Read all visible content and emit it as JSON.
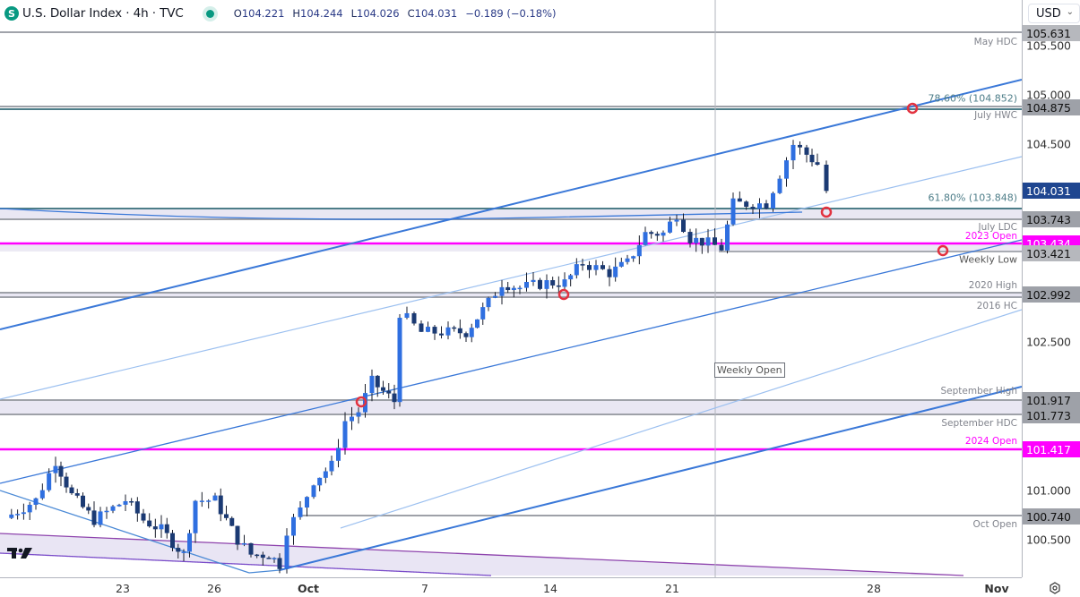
{
  "header": {
    "symbol_icon": "S",
    "title": "U.S. Dollar Index · 4h · TVC",
    "status": "market-open-dot",
    "ohlc": {
      "open_label": "O",
      "open": "104.221",
      "high_label": "H",
      "high": "104.244",
      "low_label": "L",
      "low": "104.026",
      "close_label": "C",
      "close": "104.031",
      "change": "−0.189 (−0.18%)"
    }
  },
  "currency_selector": {
    "value": "USD",
    "icon": "chevron-down-icon"
  },
  "price_axis": {
    "ticks": [
      "105.500",
      "105.000",
      "104.500",
      "102.500",
      "101.000",
      "100.500"
    ],
    "badges": [
      {
        "value": "105.631",
        "style": "lgrey"
      },
      {
        "value": "104.875",
        "style": "grey"
      },
      {
        "value": "104.031",
        "style": "navy"
      },
      {
        "value": "103.743",
        "style": "grey"
      },
      {
        "value": "103.434",
        "style": "mag"
      },
      {
        "value": "103.421",
        "style": "lgrey"
      },
      {
        "value": "102.992",
        "style": "grey"
      },
      {
        "value": "101.917",
        "style": "grey"
      },
      {
        "value": "101.773",
        "style": "grey"
      },
      {
        "value": "101.417",
        "style": "mag"
      },
      {
        "value": "100.740",
        "style": "grey"
      }
    ]
  },
  "time_axis": {
    "ticks": [
      {
        "label": "23",
        "bold": false
      },
      {
        "label": "26",
        "bold": false
      },
      {
        "label": "Oct",
        "bold": true
      },
      {
        "label": "7",
        "bold": false
      },
      {
        "label": "14",
        "bold": false
      },
      {
        "label": "21",
        "bold": false
      },
      {
        "label": "28",
        "bold": false
      },
      {
        "label": "Nov",
        "bold": true
      }
    ],
    "settings_icon": "gear-icon"
  },
  "level_labels": {
    "may_hdc": "May HDC",
    "fib786": "78.60% (104.852)",
    "july_hwc": "July HWC",
    "fib618": "61.80% (103.848)",
    "july_ldc": "July LDC",
    "open2023": "2023 Open",
    "weekly_low": "Weekly Low",
    "high2020": "2020 High",
    "hc2016": "2016 HC",
    "sept_high": "September High",
    "sept_hdc": "September HDC",
    "open2024": "2024 Open",
    "oct_open": "Oct Open",
    "weekly_open": "Weekly Open"
  },
  "colors": {
    "bull": "#2f6fe0",
    "bear": "#1b3a73",
    "magenta": "#ff00ff",
    "teal": "#4d7d88",
    "grey_level": "#9ea1a8",
    "zone_fill": "#e9e7f3",
    "channel": "#3a78d8",
    "channel_light": "#9cc0f0",
    "pitchfork_purple": "#8e44ad",
    "marker_red": "#e2323f"
  },
  "chart_data": {
    "type": "candlestick",
    "title": "U.S. Dollar Index · 4h · TVC",
    "xlabel": "",
    "ylabel": "USD",
    "ylim": [
      100.1,
      105.9
    ],
    "x_ticks": [
      "23",
      "26",
      "Oct",
      "7",
      "14",
      "21",
      "28",
      "Nov"
    ],
    "last": {
      "open": 104.221,
      "high": 104.244,
      "low": 104.026,
      "close": 104.031,
      "change": -0.189,
      "change_pct": -0.18
    },
    "horizontal_levels": [
      {
        "name": "May HDC",
        "price": 105.631
      },
      {
        "name": "78.60% Fib / July HWC",
        "price": 104.875,
        "fib": 104.852
      },
      {
        "name": "61.80% Fib",
        "price": 103.848
      },
      {
        "name": "July LDC",
        "price": 103.743
      },
      {
        "name": "2023 Open",
        "price": 103.434
      },
      {
        "name": "Weekly Low",
        "price": 103.421
      },
      {
        "name": "2020 High",
        "price": 103.0
      },
      {
        "name": "2016 HC",
        "price": 102.992
      },
      {
        "name": "September High",
        "price": 101.917
      },
      {
        "name": "September HDC",
        "price": 101.773
      },
      {
        "name": "2024 Open",
        "price": 101.417
      },
      {
        "name": "Oct Open",
        "price": 100.74
      }
    ],
    "approx_closes": [
      {
        "date": "Sep 20",
        "close": 100.8
      },
      {
        "date": "Sep 23",
        "close": 100.9
      },
      {
        "date": "Sep 25",
        "close": 100.4
      },
      {
        "date": "Sep 27",
        "close": 100.4
      },
      {
        "date": "Sep 30",
        "close": 100.7
      },
      {
        "date": "Oct 1",
        "close": 100.9
      },
      {
        "date": "Oct 2",
        "close": 101.2
      },
      {
        "date": "Oct 3",
        "close": 101.9
      },
      {
        "date": "Oct 4",
        "close": 102.5
      },
      {
        "date": "Oct 7",
        "close": 102.5
      },
      {
        "date": "Oct 9",
        "close": 102.9
      },
      {
        "date": "Oct 11",
        "close": 102.9
      },
      {
        "date": "Oct 14",
        "close": 103.1
      },
      {
        "date": "Oct 16",
        "close": 103.4
      },
      {
        "date": "Oct 18",
        "close": 103.5
      },
      {
        "date": "Oct 21",
        "close": 103.7
      },
      {
        "date": "Oct 22",
        "close": 104.0
      },
      {
        "date": "Oct 23",
        "close": 104.4
      },
      {
        "date": "Oct 24",
        "close": 104.1
      },
      {
        "date": "Oct 25",
        "close": 104.031
      }
    ]
  }
}
